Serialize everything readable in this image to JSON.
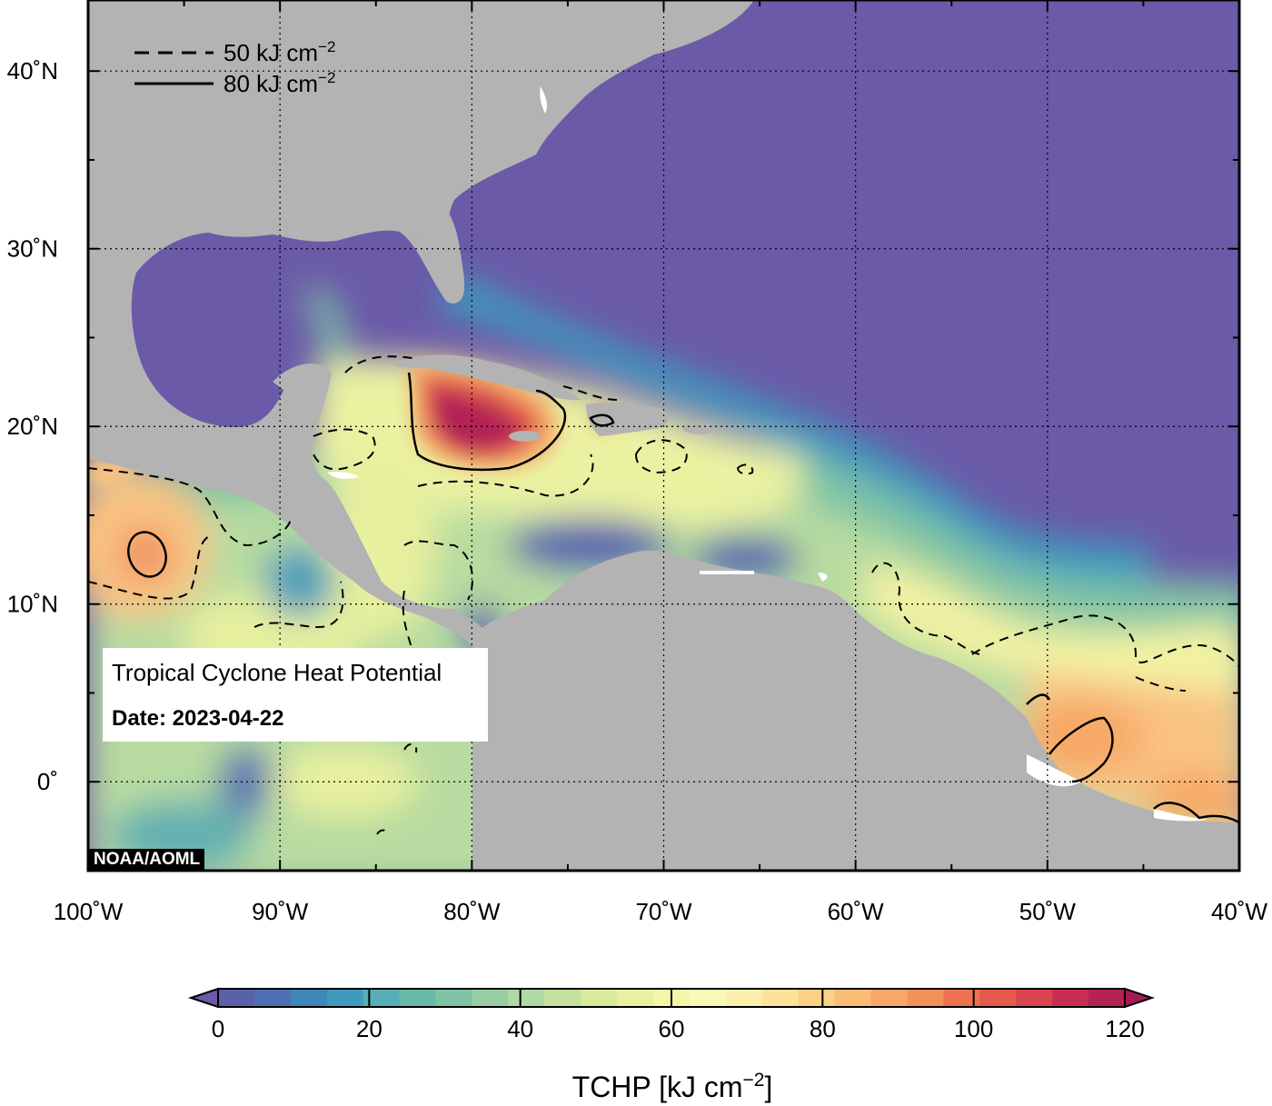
{
  "map": {
    "lon_range": [
      -100,
      -40
    ],
    "lat_range": [
      -5,
      44
    ],
    "lon_ticks": [
      "100˚W",
      "90˚W",
      "80˚W",
      "70˚W",
      "60˚W",
      "50˚W",
      "40˚W"
    ],
    "lat_ticks": [
      "40˚N",
      "30˚N",
      "20˚N",
      "10˚N",
      "0˚"
    ],
    "colors": {
      "land": "#b3b3b3",
      "deep_ocean": "#6a5aa8",
      "frame": "#000000",
      "inland_water": "#ffffff"
    }
  },
  "legend": {
    "dashed_label": "50 kJ cm",
    "solid_label": "80 kJ cm",
    "exponent": "−2"
  },
  "info": {
    "title": "Tropical Cyclone Heat Potential",
    "date": "Date: 2023-04-22"
  },
  "credit": "NOAA/AOML",
  "colorbar": {
    "ticks": [
      "0",
      "20",
      "40",
      "60",
      "80",
      "100",
      "120"
    ],
    "title": "TCHP [kJ cm",
    "title_exp": "−2",
    "title_end": "]",
    "colors": [
      "#6a5aa8",
      "#5b60ab",
      "#4f6fb3",
      "#3f87bb",
      "#3e9bbd",
      "#57aeb6",
      "#69b9a9",
      "#7ec3a4",
      "#98cea4",
      "#b0d9a2",
      "#c5e19e",
      "#d8eb9c",
      "#e8f19f",
      "#f3f6a8",
      "#fbf9b8",
      "#fbefab",
      "#fde29a",
      "#fcd086",
      "#fbbc74",
      "#f9a766",
      "#f4905a",
      "#ed7250",
      "#e45a4d",
      "#d8444f",
      "#c72f52",
      "#b52254",
      "#a51a56"
    ]
  }
}
